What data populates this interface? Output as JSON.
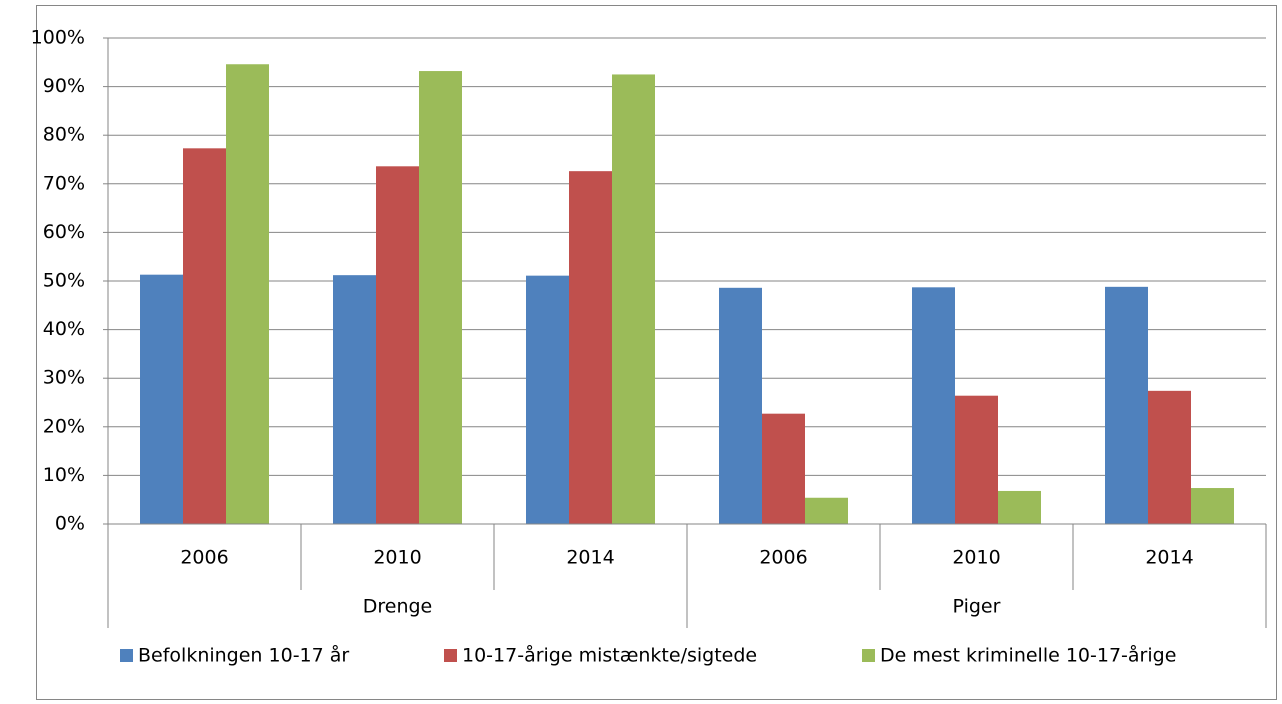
{
  "chart_data": {
    "type": "bar",
    "groups": [
      {
        "name": "Drenge",
        "categories": [
          "2006",
          "2010",
          "2014"
        ]
      },
      {
        "name": "Piger",
        "categories": [
          "2006",
          "2010",
          "2014"
        ]
      }
    ],
    "series": [
      {
        "name": "Befolkningen 10-17 år",
        "color": "#4f81bd",
        "values": [
          51.3,
          51.2,
          51.1,
          48.6,
          48.7,
          48.8
        ]
      },
      {
        "name": "10-17-årige mistænkte/sigtede",
        "color": "#c0504d",
        "values": [
          77.3,
          73.6,
          72.6,
          22.7,
          26.4,
          27.4
        ]
      },
      {
        "name": "De mest kriminelle 10-17-årige",
        "color": "#9bbb59",
        "values": [
          94.6,
          93.2,
          92.5,
          5.4,
          6.8,
          7.4
        ]
      }
    ],
    "ylim": [
      0,
      100
    ],
    "yticks": [
      {
        "value": 0,
        "label": "0%"
      },
      {
        "value": 10,
        "label": "10%"
      },
      {
        "value": 20,
        "label": "20%"
      },
      {
        "value": 30,
        "label": "30%"
      },
      {
        "value": 40,
        "label": "40%"
      },
      {
        "value": 50,
        "label": "50%"
      },
      {
        "value": 60,
        "label": "60%"
      },
      {
        "value": 70,
        "label": "70%"
      },
      {
        "value": 80,
        "label": "80%"
      },
      {
        "value": 90,
        "label": "90%"
      },
      {
        "value": 100,
        "label": "100%"
      }
    ],
    "grid": true,
    "legend": "bottom"
  }
}
